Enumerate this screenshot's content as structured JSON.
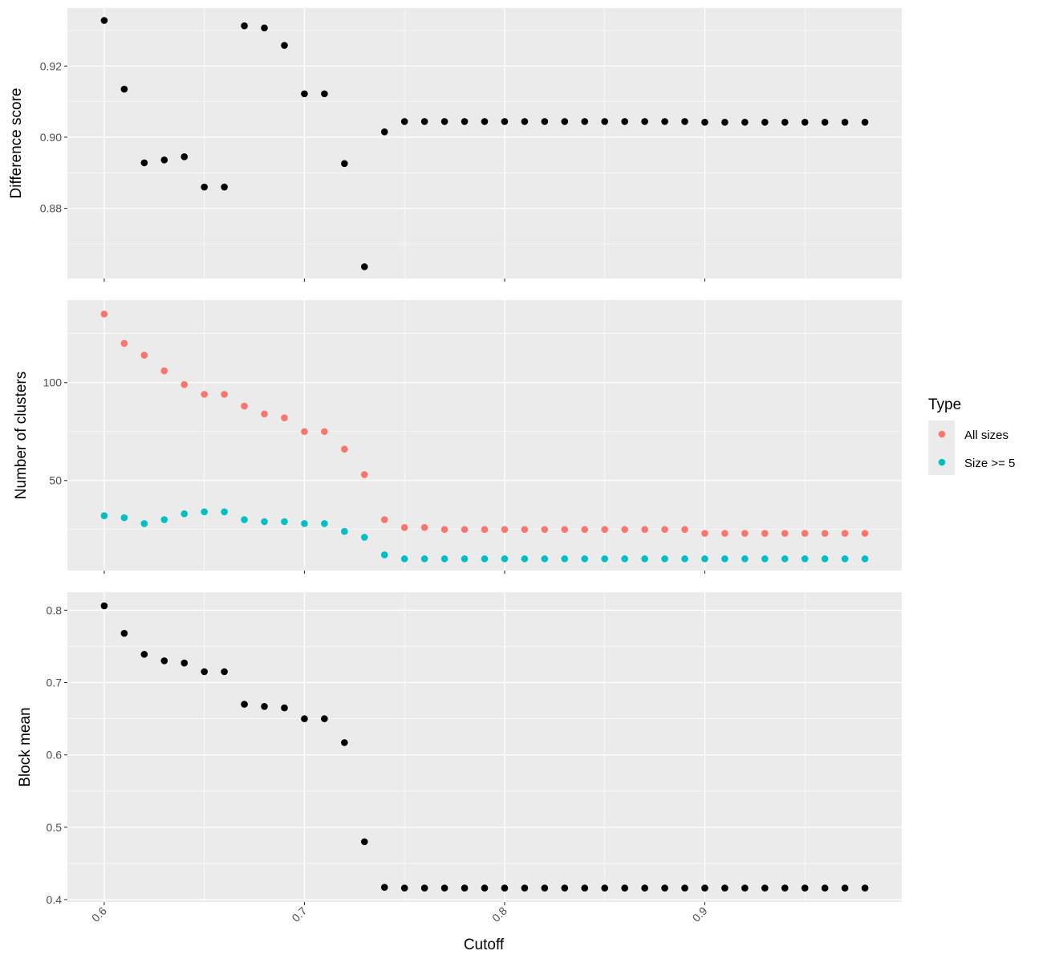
{
  "chart_data": {
    "type": "scatter",
    "xlabel": "Cutoff",
    "x_ticks": [
      0.6,
      0.7,
      0.8,
      0.9
    ],
    "x_tick_labels": [
      "0.6",
      "0.7",
      "0.8",
      "0.9"
    ],
    "xlim": [
      0.5816,
      0.9984
    ],
    "x": [
      0.6,
      0.61,
      0.62,
      0.63,
      0.64,
      0.65,
      0.66,
      0.67,
      0.68,
      0.69,
      0.7,
      0.71,
      0.72,
      0.73,
      0.74,
      0.75,
      0.76,
      0.77,
      0.78,
      0.79,
      0.8,
      0.81,
      0.82,
      0.83,
      0.84,
      0.85,
      0.86,
      0.87,
      0.88,
      0.89,
      0.9,
      0.91,
      0.92,
      0.93,
      0.94,
      0.95,
      0.96,
      0.97,
      0.98
    ],
    "grid": true,
    "legend": {
      "title": "Type",
      "placement": "right",
      "entries": [
        {
          "label": "All sizes",
          "color": "#F8766D"
        },
        {
          "label": "Size >= 5",
          "color": "#00BFC4"
        }
      ]
    },
    "panels": [
      {
        "id": "difference-score",
        "ylabel": "Difference score",
        "ylim": [
          0.8603,
          0.9363
        ],
        "y_ticks": [
          0.88,
          0.9,
          0.92
        ],
        "y_tick_labels": [
          "0.88",
          "0.90",
          "0.92"
        ],
        "series": [
          {
            "color": "#000000",
            "values": [
              0.9328,
              0.9135,
              0.8928,
              0.8936,
              0.8945,
              0.886,
              0.886,
              0.9313,
              0.9307,
              0.9258,
              0.9122,
              0.9122,
              0.8926,
              0.8636,
              0.9015,
              0.9044,
              0.9044,
              0.9044,
              0.9044,
              0.9044,
              0.9044,
              0.9044,
              0.9044,
              0.9044,
              0.9044,
              0.9044,
              0.9044,
              0.9044,
              0.9044,
              0.9044,
              0.9042,
              0.9042,
              0.9042,
              0.9042,
              0.9042,
              0.9042,
              0.9042,
              0.9042,
              0.9042
            ]
          }
        ]
      },
      {
        "id": "number-of-clusters",
        "ylabel": "Number of clusters",
        "ylim": [
          4.0,
          142.1
        ],
        "y_ticks": [
          50,
          100
        ],
        "y_tick_labels": [
          "50",
          "100"
        ],
        "series": [
          {
            "name": "All sizes",
            "color": "#F8766D",
            "values": [
              135,
              120,
              114,
              106,
              99,
              94,
              94,
              88,
              84,
              82,
              75,
              75,
              66,
              53,
              30,
              26,
              26,
              25,
              25,
              25,
              25,
              25,
              25,
              25,
              25,
              25,
              25,
              25,
              25,
              25,
              23,
              23,
              23,
              23,
              23,
              23,
              23,
              23,
              23
            ]
          },
          {
            "name": "Size >= 5",
            "color": "#00BFC4",
            "values": [
              32,
              31,
              28,
              30,
              33,
              34,
              34,
              30,
              29,
              29,
              28,
              28,
              24,
              21,
              12,
              10,
              10,
              10,
              10,
              10,
              10,
              10,
              10,
              10,
              10,
              10,
              10,
              10,
              10,
              10,
              10,
              10,
              10,
              10,
              10,
              10,
              10,
              10,
              10
            ]
          }
        ]
      },
      {
        "id": "block-mean",
        "ylabel": "Block mean",
        "ylim": [
          0.3967,
          0.8248
        ],
        "y_ticks": [
          0.4,
          0.5,
          0.6,
          0.7,
          0.8
        ],
        "y_tick_labels": [
          "0.4",
          "0.5",
          "0.6",
          "0.7",
          "0.8"
        ],
        "series": [
          {
            "color": "#000000",
            "values": [
              0.806,
              0.768,
              0.739,
              0.73,
              0.727,
              0.715,
              0.715,
              0.67,
              0.667,
              0.665,
              0.65,
              0.65,
              0.617,
              0.48,
              0.417,
              0.416,
              0.416,
              0.416,
              0.416,
              0.416,
              0.416,
              0.416,
              0.416,
              0.416,
              0.416,
              0.416,
              0.416,
              0.416,
              0.416,
              0.416,
              0.416,
              0.416,
              0.416,
              0.416,
              0.416,
              0.416,
              0.416,
              0.416,
              0.416
            ]
          }
        ]
      }
    ]
  }
}
